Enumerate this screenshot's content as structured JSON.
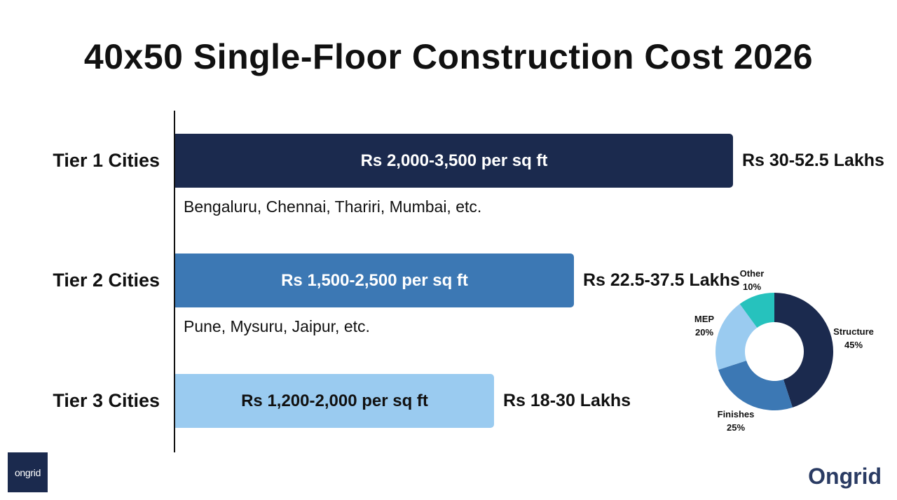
{
  "title": "40x50 Single-Floor Construction Cost 2026",
  "chart_data": [
    {
      "type": "bar",
      "orientation": "horizontal",
      "categories": [
        "Tier 1 Cities",
        "Tier 2 Cities",
        "Tier 3 Cities"
      ],
      "series": [
        {
          "values": [
            3500,
            2500,
            2000
          ]
        }
      ],
      "bar_labels": [
        "Rs 2,000-3,500 per sq ft",
        "Rs 1,500-2,500 per sq ft",
        "Rs 1,200-2,000 per sq ft"
      ],
      "totals": [
        "Rs 30-52.5 Lakhs",
        "Rs 22.5-37.5 Lakhs",
        "Rs 18-30 Lakhs"
      ],
      "city_examples": [
        "Bengaluru, Chennai, Thariri, Mumbai, etc.",
        "Pune, Mysuru, Jaipur, etc.",
        ""
      ],
      "xlim": [
        0,
        4000
      ],
      "bar_colors": [
        "#1b2a4e",
        "#3c78b4",
        "#9acbf0"
      ],
      "bar_text_colors": [
        "#ffffff",
        "#ffffff",
        "#111111"
      ],
      "grid": false
    },
    {
      "type": "pie",
      "variant": "donut",
      "slices": [
        {
          "name": "Structure",
          "value": 45,
          "label": "45%",
          "color": "#1b2a4e"
        },
        {
          "name": "Finishes",
          "value": 25,
          "label": "25%",
          "color": "#3c78b4"
        },
        {
          "name": "MEP",
          "value": 20,
          "label": "20%",
          "color": "#9acbf0"
        },
        {
          "name": "Other",
          "value": 10,
          "label": "10%",
          "color": "#26c2bd"
        }
      ]
    }
  ],
  "logos": {
    "left": "ongrid",
    "right": "Ongrid"
  }
}
